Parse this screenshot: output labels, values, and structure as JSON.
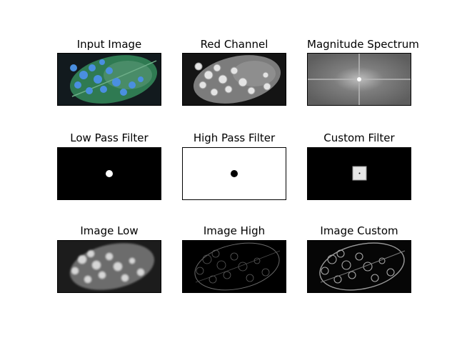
{
  "chart_data": [
    {
      "type": "image",
      "title": "Input Image",
      "content": "leaf photo with blue-highlighted spots",
      "colors": {
        "background": "#101418",
        "leaf": "#2e7d4f",
        "spots": "#4a8fe0"
      }
    },
    {
      "type": "image",
      "title": "Red Channel",
      "content": "grayscale red channel of leaf",
      "colors": {
        "background": "#111111",
        "leaf": "#7a7a7a",
        "spots": "#e6e6e6"
      }
    },
    {
      "type": "image",
      "title": "Magnitude Spectrum",
      "content": "centered FFT magnitude spectrum",
      "colors": {
        "background": "#6f6f6f",
        "center": "#ffffff"
      }
    },
    {
      "type": "image",
      "title": "Low Pass Filter",
      "content": "white disc on black",
      "colors": {
        "background": "#000000",
        "mask": "#ffffff"
      }
    },
    {
      "type": "image",
      "title": "High Pass Filter",
      "content": "black disc on white",
      "colors": {
        "background": "#ffffff",
        "mask": "#000000"
      }
    },
    {
      "type": "image",
      "title": "Custom Filter",
      "content": "gray square with center dot on black",
      "colors": {
        "background": "#000000",
        "mask": "#e8e8e8"
      }
    },
    {
      "type": "image",
      "title": "Image Low",
      "content": "blurred low-pass result",
      "colors": {
        "background": "#1a1a1a",
        "leaf": "#6a6a6a",
        "spots": "#d8d8d8"
      }
    },
    {
      "type": "image",
      "title": "Image High",
      "content": "edge-like high-pass result",
      "colors": {
        "background": "#000000",
        "edges": "#8a8a8a"
      }
    },
    {
      "type": "image",
      "title": "Image Custom",
      "content": "edge-like custom filter result",
      "colors": {
        "background": "#050505",
        "edges": "#b0b0b0"
      }
    }
  ]
}
